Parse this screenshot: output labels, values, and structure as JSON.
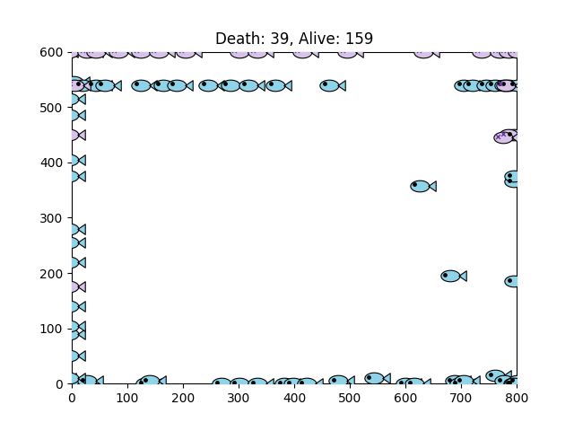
{
  "chart_data": {
    "type": "scatter",
    "title": "Death: 39, Alive: 159",
    "xlim": [
      0,
      800
    ],
    "ylim": [
      0,
      600
    ],
    "xticks": [
      0,
      100,
      200,
      300,
      400,
      500,
      600,
      700,
      800
    ],
    "yticks": [
      0,
      100,
      200,
      300,
      400,
      500,
      600
    ],
    "series": [
      {
        "color": "#8fd3e8",
        "marker": "fish",
        "x": [
          -16,
          0,
          32,
          137,
          145,
          274,
          306,
          339,
          387,
          403,
          427,
          484,
          548,
          605,
          621,
          693,
          702,
          710,
          766,
          782,
          798,
          806,
          -16,
          8,
          24,
          48,
          65,
          129,
          169,
          194,
          250,
          290,
          323,
          371,
          468,
          710,
          726,
          750,
          766,
          782,
          790,
          806,
          0,
          0,
          0,
          0,
          0,
          0,
          0,
          0,
          0,
          0,
          0,
          0,
          800,
          800,
          800,
          800,
          800,
          630,
          685
        ],
        "y": [
          10,
          0,
          5,
          0,
          5,
          0,
          0,
          0,
          0,
          0,
          0,
          5,
          10,
          0,
          0,
          5,
          0,
          5,
          15,
          5,
          0,
          5,
          540,
          545,
          540,
          540,
          540,
          540,
          540,
          540,
          540,
          540,
          540,
          540,
          540,
          540,
          540,
          540,
          540,
          540,
          540,
          540,
          10,
          50,
          90,
          105,
          140,
          220,
          255,
          280,
          375,
          405,
          485,
          515,
          0,
          185,
          365,
          375,
          450,
          358,
          195
        ]
      },
      {
        "color": "#d8c3e8",
        "marker": "dead_fish",
        "x": [
          -13,
          0,
          32,
          48,
          89,
          129,
          161,
          210,
          306,
          339,
          419,
          500,
          637,
          742,
          774,
          790,
          806,
          0,
          0,
          790,
          780,
          10,
          785
        ],
        "y": [
          600,
          600,
          600,
          600,
          600,
          600,
          600,
          600,
          600,
          600,
          600,
          600,
          600,
          600,
          600,
          600,
          600,
          450,
          175,
          450,
          445,
          540,
          540
        ]
      }
    ]
  }
}
